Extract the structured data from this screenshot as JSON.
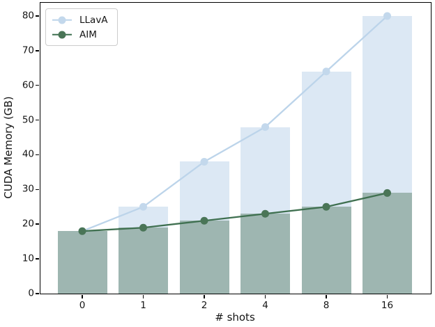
{
  "chart_data": {
    "type": "bar",
    "overlay": "line-with-circle-markers",
    "title": "",
    "categories": [
      "0",
      "1",
      "2",
      "4",
      "8",
      "16"
    ],
    "series": [
      {
        "name": "LLavA",
        "values": [
          18,
          25,
          38,
          48,
          64,
          80
        ],
        "bar_color": "#dce8f4",
        "line_color": "#bcd4ea",
        "marker_color": "#c3d8ec"
      },
      {
        "name": "AIM",
        "values": [
          18,
          19,
          21,
          23,
          25,
          29
        ],
        "bar_color": "#9eb6b1",
        "line_color": "#3f7050",
        "marker_color": "#4a7557"
      }
    ],
    "xlabel": "# shots",
    "ylabel": "CUDA Memory (GB)",
    "yticks": [
      0,
      10,
      20,
      30,
      40,
      50,
      60,
      70,
      80
    ],
    "ylim": [
      0,
      83.8
    ],
    "grid": false,
    "legend_position": "upper-left",
    "axis_color": "#000000",
    "text_color": "#151515"
  }
}
